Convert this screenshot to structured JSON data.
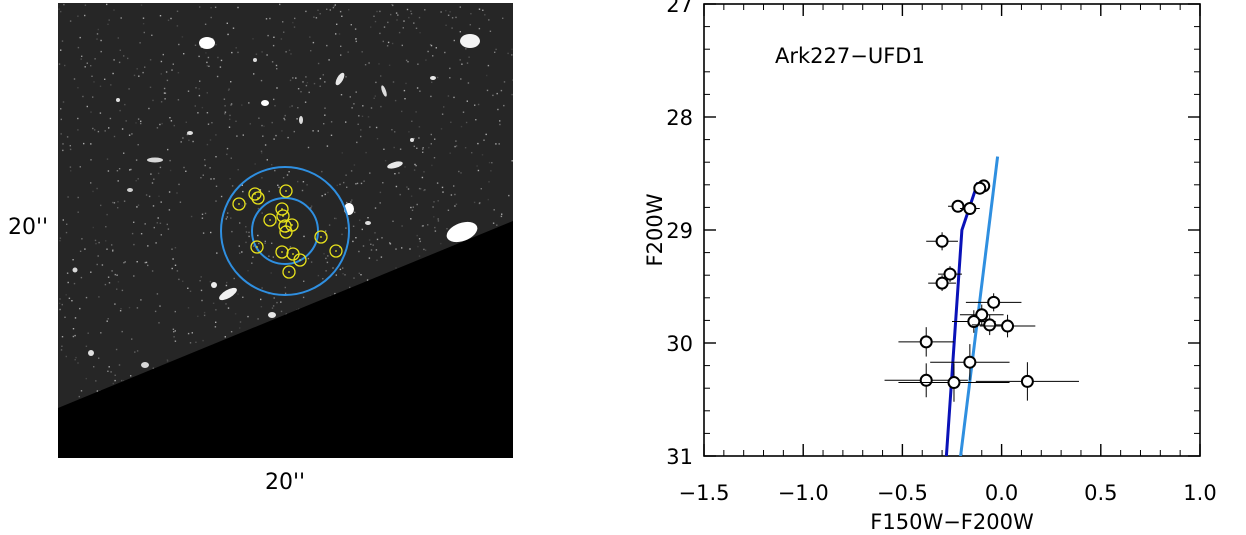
{
  "image_panel": {
    "scale_label_y": "20''",
    "scale_label_x": "20''"
  },
  "chart_data": {
    "type": "scatter",
    "title": "",
    "annotation": "Ark227−UFD1",
    "xlabel": "F150W−F200W",
    "ylabel": "F200W",
    "xlim": [
      -1.5,
      1.0
    ],
    "ylim": [
      31,
      27
    ],
    "y_inverted": true,
    "xticks": [
      "−1.5",
      "−1.0",
      "−0.5",
      "0.0",
      "0.5",
      "1.0"
    ],
    "xtick_values": [
      -1.5,
      -1.0,
      -0.5,
      0.0,
      0.5,
      1.0
    ],
    "yticks": [
      "27",
      "28",
      "29",
      "30",
      "31"
    ],
    "ytick_values": [
      27,
      28,
      29,
      30,
      31
    ],
    "grid": false,
    "points": [
      {
        "x": -0.09,
        "y": 28.61,
        "xerr": 0.02,
        "yerr": 0.03
      },
      {
        "x": -0.11,
        "y": 28.63,
        "xerr": 0.02,
        "yerr": 0.03
      },
      {
        "x": -0.22,
        "y": 28.79,
        "xerr": 0.05,
        "yerr": 0.05
      },
      {
        "x": -0.16,
        "y": 28.81,
        "xerr": 0.05,
        "yerr": 0.05
      },
      {
        "x": -0.3,
        "y": 29.1,
        "xerr": 0.08,
        "yerr": 0.08
      },
      {
        "x": -0.26,
        "y": 29.39,
        "xerr": 0.06,
        "yerr": 0.07
      },
      {
        "x": -0.3,
        "y": 29.47,
        "xerr": 0.07,
        "yerr": 0.07
      },
      {
        "x": -0.04,
        "y": 29.64,
        "xerr": 0.14,
        "yerr": 0.08
      },
      {
        "x": -0.1,
        "y": 29.75,
        "xerr": 0.11,
        "yerr": 0.09
      },
      {
        "x": -0.14,
        "y": 29.81,
        "xerr": 0.11,
        "yerr": 0.1
      },
      {
        "x": -0.06,
        "y": 29.84,
        "xerr": 0.09,
        "yerr": 0.09
      },
      {
        "x": 0.03,
        "y": 29.85,
        "xerr": 0.14,
        "yerr": 0.1
      },
      {
        "x": -0.38,
        "y": 29.99,
        "xerr": 0.14,
        "yerr": 0.13
      },
      {
        "x": -0.16,
        "y": 30.17,
        "xerr": 0.2,
        "yerr": 0.16
      },
      {
        "x": -0.38,
        "y": 30.33,
        "xerr": 0.21,
        "yerr": 0.15
      },
      {
        "x": -0.24,
        "y": 30.35,
        "xerr": 0.28,
        "yerr": 0.17
      },
      {
        "x": 0.13,
        "y": 30.34,
        "xerr": 0.26,
        "yerr": 0.17
      }
    ],
    "lines": [
      {
        "color": "#0a12b8",
        "points": [
          {
            "x": -0.28,
            "y": 31.05
          },
          {
            "x": -0.2,
            "y": 29.0
          },
          {
            "x": -0.12,
            "y": 28.58
          }
        ]
      },
      {
        "color": "#2f8fe0",
        "points": [
          {
            "x": -0.21,
            "y": 31.05
          },
          {
            "x": -0.02,
            "y": 28.35
          }
        ]
      }
    ]
  }
}
